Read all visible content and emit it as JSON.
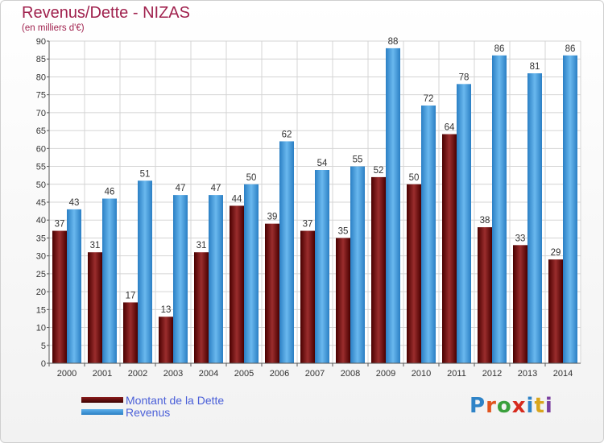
{
  "header": {
    "title": "Revenus/Dette - NIZAS",
    "subtitle": "(en milliers d'€)"
  },
  "legend": {
    "items": [
      {
        "label": "Montant de la Dette",
        "color": "#7a1010"
      },
      {
        "label": "Revenus",
        "color": "#3f9fe0"
      }
    ]
  },
  "logo": {
    "letters": [
      "P",
      "r",
      "o",
      "x",
      "i",
      "t",
      "i"
    ],
    "colors": [
      "#2e83c7",
      "#e1541e",
      "#3aa03c",
      "#d62a1d",
      "#2e83c7",
      "#d9a51c",
      "#7a3fa0"
    ]
  },
  "chart_data": {
    "type": "bar",
    "categories": [
      "2000",
      "2001",
      "2002",
      "2003",
      "2004",
      "2005",
      "2006",
      "2007",
      "2008",
      "2009",
      "2010",
      "2011",
      "2012",
      "2013",
      "2014"
    ],
    "series": [
      {
        "name": "Montant de la Dette",
        "color": "#7a1010",
        "values": [
          37,
          31,
          17,
          13,
          31,
          44,
          39,
          37,
          35,
          52,
          50,
          64,
          38,
          33,
          29
        ]
      },
      {
        "name": "Revenus",
        "color": "#3f9fe0",
        "values": [
          43,
          46,
          51,
          47,
          47,
          50,
          62,
          54,
          55,
          88,
          72,
          78,
          86,
          81,
          86
        ]
      }
    ],
    "title": "Revenus/Dette - NIZAS",
    "ylabel": "(en milliers d'€)",
    "ylim": [
      0,
      90
    ],
    "yticks": [
      0,
      5,
      10,
      15,
      20,
      25,
      30,
      35,
      40,
      45,
      50,
      55,
      60,
      65,
      70,
      75,
      80,
      85,
      90
    ],
    "grid": true,
    "legend_position": "bottom-left"
  }
}
